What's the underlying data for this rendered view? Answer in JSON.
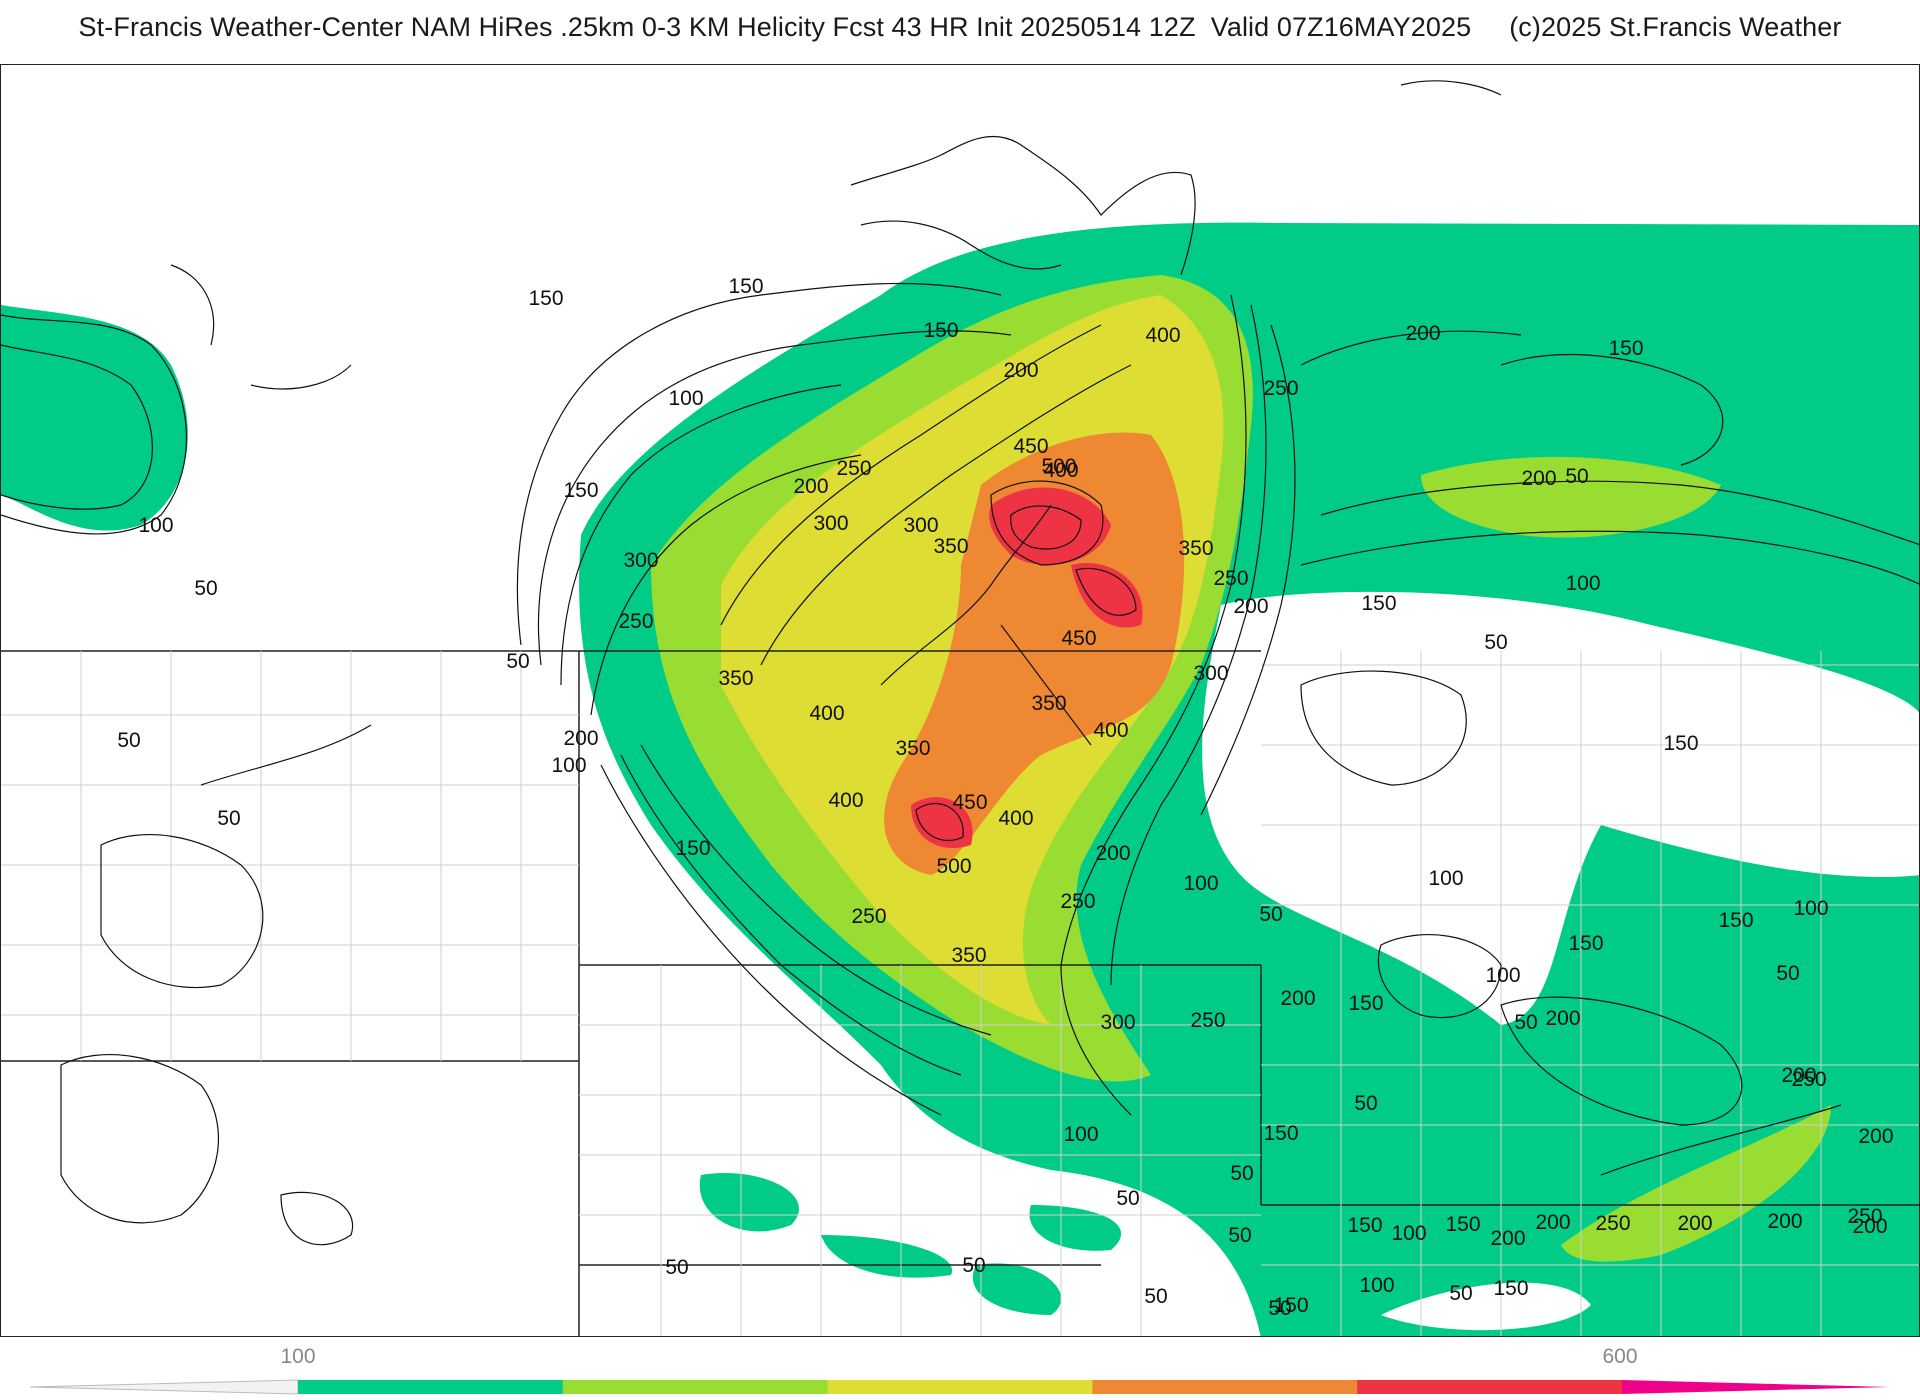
{
  "header": {
    "title": "St-Francis Weather-Center NAM HiRes .25km 0-3 KM Helicity Fcst 43 HR Init 20250514 12Z  Valid 07Z16MAY2025     (c)2025 St.Francis Weather"
  },
  "map": {
    "field": "0-3 KM Helicity",
    "contour_labels": [
      {
        "text": "150"
      },
      {
        "text": "150"
      },
      {
        "text": "100"
      },
      {
        "text": "200"
      },
      {
        "text": "400"
      },
      {
        "text": "150"
      },
      {
        "text": "200"
      },
      {
        "text": "150"
      },
      {
        "text": "150"
      },
      {
        "text": "200"
      },
      {
        "text": "250"
      },
      {
        "text": "450"
      },
      {
        "text": "500"
      },
      {
        "text": "400"
      },
      {
        "text": "250"
      },
      {
        "text": "300"
      },
      {
        "text": "300"
      },
      {
        "text": "350"
      },
      {
        "text": "350"
      },
      {
        "text": "250"
      },
      {
        "text": "200"
      },
      {
        "text": "150"
      },
      {
        "text": "100"
      },
      {
        "text": "50"
      },
      {
        "text": "300"
      },
      {
        "text": "250"
      },
      {
        "text": "50"
      },
      {
        "text": "350"
      },
      {
        "text": "400"
      },
      {
        "text": "450"
      },
      {
        "text": "350"
      },
      {
        "text": "300"
      },
      {
        "text": "400"
      },
      {
        "text": "200"
      },
      {
        "text": "100"
      },
      {
        "text": "50"
      },
      {
        "text": "350"
      },
      {
        "text": "450"
      },
      {
        "text": "400"
      },
      {
        "text": "400"
      },
      {
        "text": "150"
      },
      {
        "text": "500"
      },
      {
        "text": "200"
      },
      {
        "text": "100"
      },
      {
        "text": "50"
      },
      {
        "text": "250"
      },
      {
        "text": "250"
      },
      {
        "text": "200"
      },
      {
        "text": "50"
      },
      {
        "text": "100"
      },
      {
        "text": "50"
      },
      {
        "text": "350"
      },
      {
        "text": "300"
      },
      {
        "text": "250"
      },
      {
        "text": "200"
      },
      {
        "text": "150"
      },
      {
        "text": "200"
      },
      {
        "text": "100"
      },
      {
        "text": "50"
      },
      {
        "text": "150"
      },
      {
        "text": "100"
      },
      {
        "text": "50"
      },
      {
        "text": "50"
      },
      {
        "text": "100"
      },
      {
        "text": "50"
      },
      {
        "text": "50"
      },
      {
        "text": "150"
      },
      {
        "text": "50"
      },
      {
        "text": "150"
      },
      {
        "text": "200"
      },
      {
        "text": "250"
      },
      {
        "text": "200"
      },
      {
        "text": "200"
      },
      {
        "text": "200"
      },
      {
        "text": "100"
      },
      {
        "text": "150"
      },
      {
        "text": "150"
      },
      {
        "text": "150"
      },
      {
        "text": "200"
      },
      {
        "text": "250"
      },
      {
        "text": "200"
      },
      {
        "text": "250"
      },
      {
        "text": "200"
      },
      {
        "text": "100"
      },
      {
        "text": "150"
      },
      {
        "text": "100"
      },
      {
        "text": "50"
      },
      {
        "text": "150"
      },
      {
        "text": "50"
      },
      {
        "text": "50"
      },
      {
        "text": "50"
      },
      {
        "text": "50"
      },
      {
        "text": "50"
      }
    ]
  },
  "colorbar": {
    "colors": [
      "#ffffff",
      "#00cc88",
      "#99dd33",
      "#dddd33",
      "#ee8833",
      "#ee3344",
      "#ee0088"
    ],
    "tick_labels": [
      {
        "text": "100"
      },
      {
        "text": "600"
      }
    ]
  }
}
